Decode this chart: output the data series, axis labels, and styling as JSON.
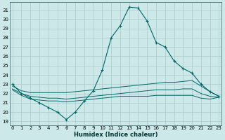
{
  "xlabel": "Humidex (Indice chaleur)",
  "background_color": "#cce8e8",
  "grid_color": "#aacccc",
  "line_color": "#006666",
  "x_ticks": [
    0,
    1,
    2,
    3,
    4,
    5,
    6,
    7,
    8,
    9,
    10,
    11,
    12,
    13,
    14,
    15,
    16,
    17,
    18,
    19,
    20,
    21,
    22,
    23
  ],
  "y_ticks": [
    19,
    20,
    21,
    22,
    23,
    24,
    25,
    26,
    27,
    28,
    29,
    30,
    31
  ],
  "ylim": [
    18.6,
    31.8
  ],
  "xlim": [
    -0.3,
    23.3
  ],
  "series": [
    {
      "x": [
        0,
        1,
        2,
        3,
        4,
        5,
        6,
        7,
        8,
        9,
        10,
        11,
        12,
        13,
        14,
        15,
        16,
        17,
        18,
        19,
        20,
        21,
        22,
        23
      ],
      "y": [
        23.0,
        22.0,
        21.5,
        21.0,
        20.5,
        20.0,
        19.2,
        20.0,
        21.2,
        22.3,
        24.5,
        28.0,
        29.3,
        31.3,
        31.2,
        29.8,
        27.5,
        27.0,
        25.5,
        24.7,
        24.2,
        23.0,
        22.2,
        21.7
      ]
    },
    {
      "x": [
        0,
        1,
        2,
        3,
        4,
        5,
        6,
        7,
        8,
        9,
        10,
        11,
        12,
        13,
        14,
        15,
        16,
        17,
        18,
        19,
        20,
        21,
        22,
        23
      ],
      "y": [
        22.8,
        22.3,
        22.1,
        22.1,
        22.1,
        22.1,
        22.1,
        22.2,
        22.3,
        22.4,
        22.5,
        22.6,
        22.7,
        22.8,
        22.9,
        23.0,
        23.1,
        23.2,
        23.2,
        23.3,
        23.4,
        22.8,
        22.2,
        21.7
      ]
    },
    {
      "x": [
        0,
        1,
        2,
        3,
        4,
        5,
        6,
        7,
        8,
        9,
        10,
        11,
        12,
        13,
        14,
        15,
        16,
        17,
        18,
        19,
        20,
        21,
        22,
        23
      ],
      "y": [
        22.5,
        22.0,
        21.7,
        21.6,
        21.5,
        21.5,
        21.4,
        21.5,
        21.6,
        21.7,
        21.8,
        21.9,
        22.0,
        22.1,
        22.2,
        22.3,
        22.4,
        22.4,
        22.4,
        22.5,
        22.5,
        22.0,
        21.7,
        21.6
      ]
    },
    {
      "x": [
        0,
        1,
        2,
        3,
        4,
        5,
        6,
        7,
        8,
        9,
        10,
        11,
        12,
        13,
        14,
        15,
        16,
        17,
        18,
        19,
        20,
        21,
        22,
        23
      ],
      "y": [
        22.4,
        21.8,
        21.4,
        21.3,
        21.2,
        21.2,
        21.1,
        21.2,
        21.3,
        21.4,
        21.5,
        21.6,
        21.7,
        21.7,
        21.7,
        21.7,
        21.8,
        21.8,
        21.8,
        21.8,
        21.8,
        21.5,
        21.4,
        21.6
      ]
    }
  ]
}
